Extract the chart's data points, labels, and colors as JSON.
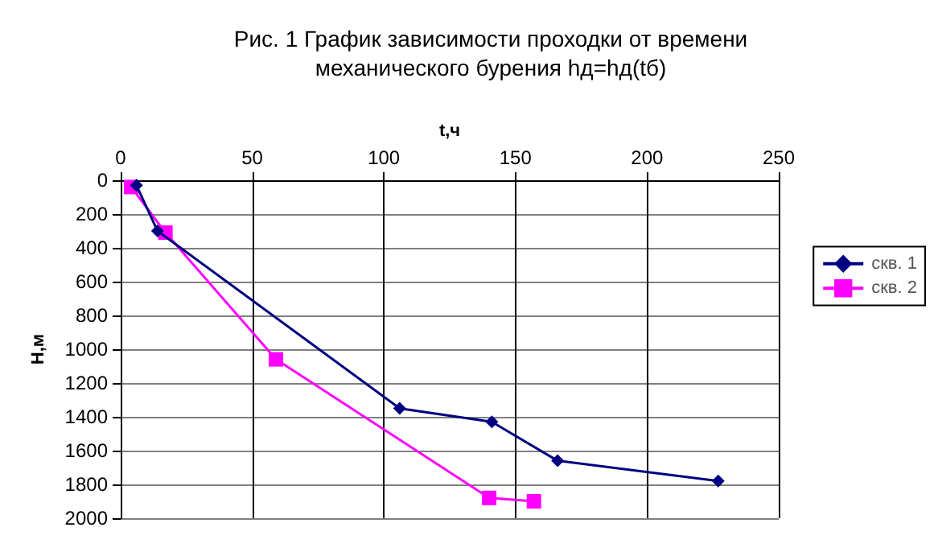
{
  "chart_data": {
    "type": "line",
    "title": "Рис. 1 График зависимости проходки от времени\nмеханического бурения hд=hд(tб)",
    "xlabel": "t,ч",
    "ylabel": "Н,м",
    "xlim": [
      0,
      250
    ],
    "xticks": [
      0,
      50,
      100,
      150,
      200,
      250
    ],
    "ylim": [
      2000,
      0
    ],
    "yticks": [
      0,
      200,
      400,
      600,
      800,
      1000,
      1200,
      1400,
      1600,
      1800,
      2000
    ],
    "grid": true,
    "legend": "right",
    "series": [
      {
        "name": "скв. 1",
        "color": "#000080",
        "marker": "diamond",
        "x": [
          6,
          14,
          106,
          141,
          166,
          227
        ],
        "values": [
          30,
          300,
          1350,
          1430,
          1660,
          1780
        ]
      },
      {
        "name": "скв. 2",
        "color": "#ff00ff",
        "marker": "square",
        "x": [
          4,
          17,
          59,
          140,
          157
        ],
        "values": [
          40,
          310,
          1060,
          1880,
          1900
        ]
      }
    ]
  }
}
